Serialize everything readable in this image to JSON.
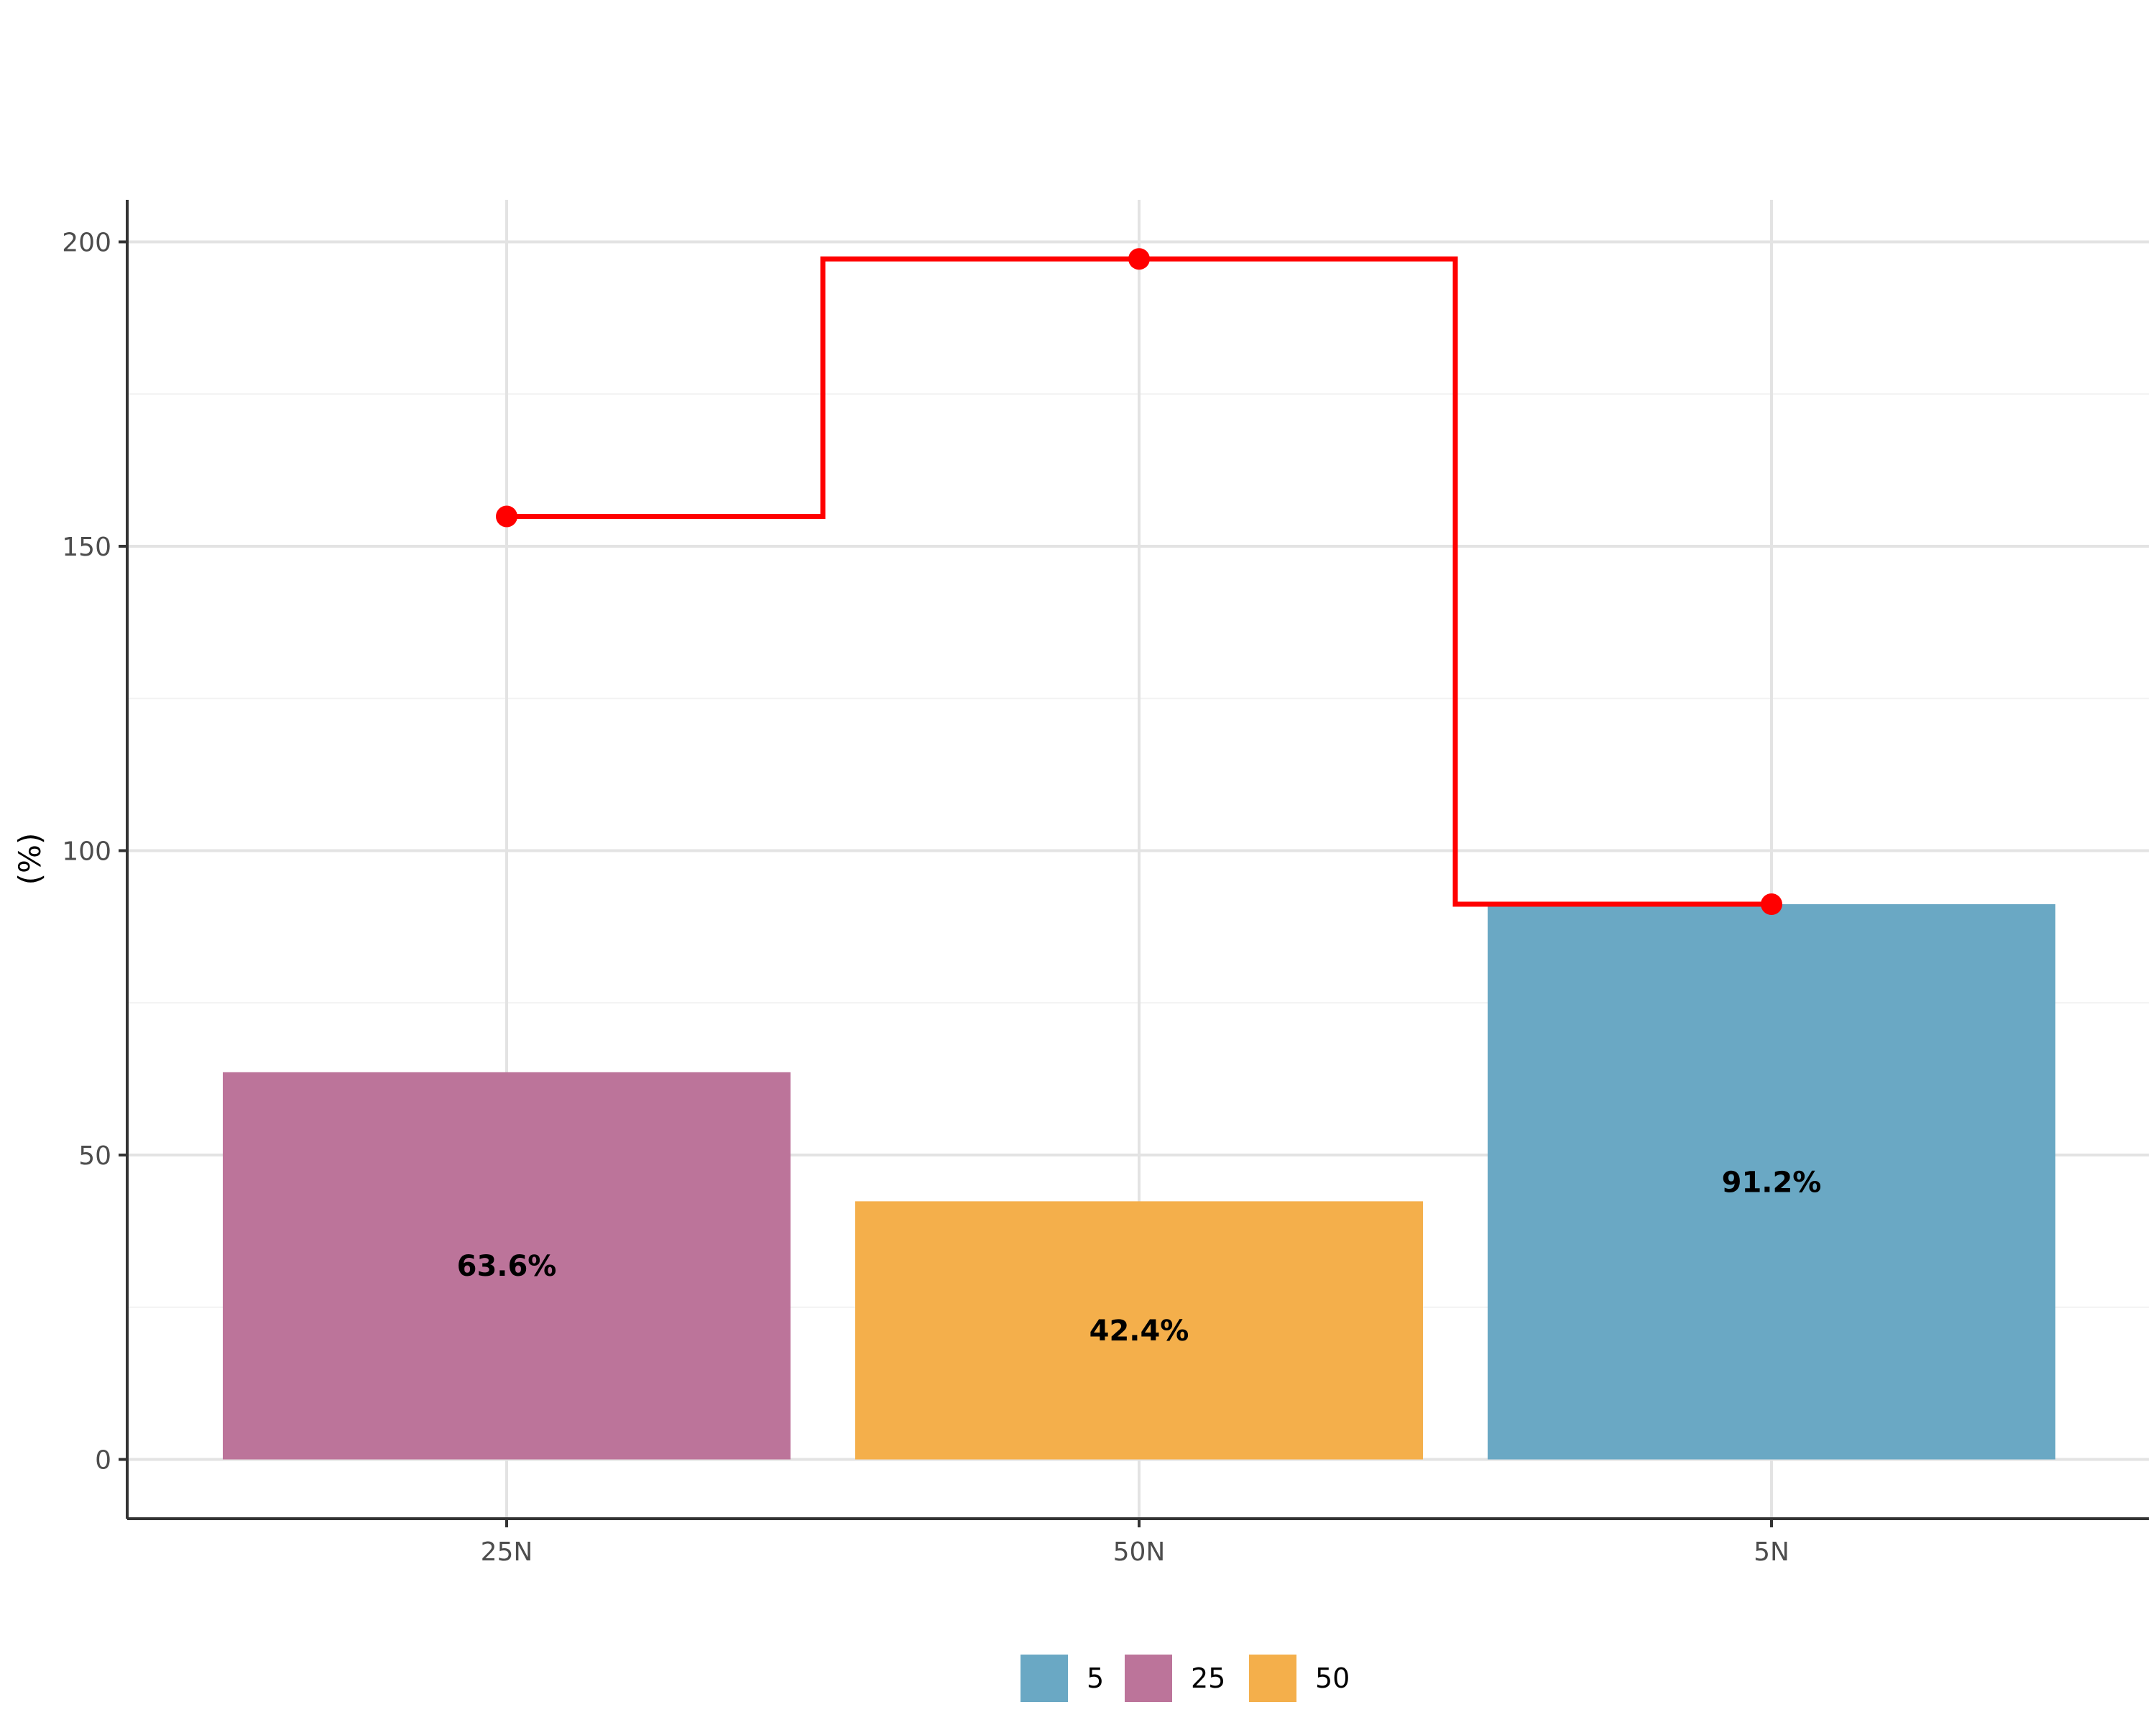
{
  "chart_data": {
    "type": "bar",
    "title": "",
    "subtitle": "",
    "xlabel": "",
    "ylabel": "(%)",
    "ylim": [
      -10,
      207
    ],
    "yticks": [
      0,
      50,
      100,
      150,
      200
    ],
    "categories": [
      "25N",
      "50N",
      "5N"
    ],
    "bars": [
      {
        "category": "25N",
        "group": "25",
        "value": 63.6,
        "label": "63.6%"
      },
      {
        "category": "50N",
        "group": "50",
        "value": 42.4,
        "label": "42.4%"
      },
      {
        "category": "5N",
        "group": "5",
        "value": 91.2,
        "label": "91.2%"
      }
    ],
    "line": {
      "style": "step",
      "color": "#ff0000",
      "values": [
        154.9,
        197.2,
        91.2
      ]
    },
    "grid": true,
    "legend": {
      "title": "",
      "position": "bottom",
      "items": [
        {
          "label": "5",
          "color": "#6aa8c4"
        },
        {
          "label": "25",
          "color": "#bc749a"
        },
        {
          "label": "50",
          "color": "#f4af4b"
        }
      ]
    }
  }
}
